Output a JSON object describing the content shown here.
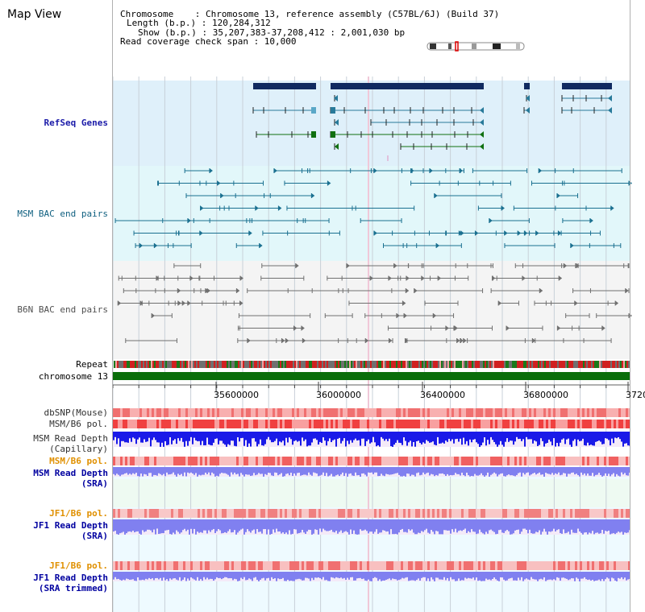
{
  "view": {
    "title": "Map View",
    "info_lines": [
      "Chromosome    : Chromosome 13, reference assembly (C57BL/6J) (Build 37)",
      "Length (b.p.) : 120,284,312",
      "Show (b.p.) : 35,207,383-37,208,412 : 2,001,030 bp",
      "Read coverage check span : 10,000"
    ]
  },
  "tracks": {
    "refseq": "RefSeq Genes",
    "msm_bac": "MSM BAC end pairs",
    "b6n_bac": "B6N BAC end pairs",
    "repeat": "Repeat",
    "chromosome": "chromosome 13",
    "dbsnp": "dbSNP(Mouse)",
    "msm_b6_pol_1": "MSM/B6 pol.",
    "msm_depth_cap_1": "MSM Read Depth",
    "msm_depth_cap_2": "(Capillary)",
    "msm_b6_pol_2": "MSM/B6 pol.",
    "msm_depth_sra_1": "MSM Read Depth",
    "msm_depth_sra_2": "(SRA)",
    "jf1_b6_pol_1": "JF1/B6 pol.",
    "jf1_depth_sra_1": "JF1 Read Depth",
    "jf1_depth_sra_2": "(SRA)",
    "jf1_b6_pol_2": "JF1/B6 pol.",
    "jf1_depth_trim_1": "JF1 Read Depth",
    "jf1_depth_trim_2": "(SRA trimmed)"
  },
  "axis": {
    "tick_labels": [
      "35600000",
      "36000000",
      "36400000",
      "36800000",
      "3720"
    ]
  },
  "colors": {
    "refseq_bg": "#dff0fa",
    "msm_bg": "#e2f7fa",
    "b6n_bg": "#f4f4f4",
    "gene_navy": "#102a60",
    "gene_teal": "#287a9a",
    "gene_green": "#107010",
    "msm_line": "#1a7090",
    "b6n_line": "#707070",
    "chromosome_bar": "#0a6e0a",
    "depth_dark": "#1a1ae8",
    "depth_light": "#8080f0",
    "pol_red": "#f07070"
  }
}
